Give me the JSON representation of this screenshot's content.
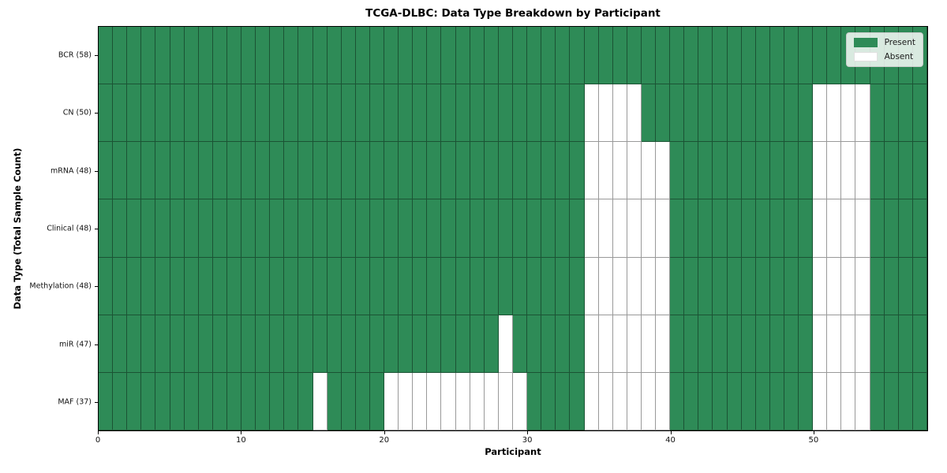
{
  "chart_data": {
    "type": "heatmap",
    "title": "TCGA-DLBC: Data Type Breakdown by Participant",
    "xlabel": "Participant",
    "ylabel": "Data Type (Total Sample Count)",
    "n_participants": 58,
    "x_range": [
      0,
      58
    ],
    "x_ticks": [
      0,
      10,
      20,
      30,
      40,
      50
    ],
    "grid": true,
    "legend_position": "upper right",
    "legend_labels": [
      "Present",
      "Absent"
    ],
    "colors": {
      "present": "#2e8b57",
      "absent": "#ffffff",
      "cell_border": "rgba(0,0,0,0.4)"
    },
    "rows": [
      {
        "label": "BCR (58)",
        "data_type": "BCR",
        "total_samples": 58,
        "absent_participants": []
      },
      {
        "label": "CN (50)",
        "data_type": "CN",
        "total_samples": 50,
        "absent_participants": [
          34,
          35,
          36,
          37,
          50,
          51,
          52,
          53
        ]
      },
      {
        "label": "mRNA (48)",
        "data_type": "mRNA",
        "total_samples": 48,
        "absent_participants": [
          34,
          35,
          36,
          37,
          38,
          39,
          50,
          51,
          52,
          53
        ]
      },
      {
        "label": "Clinical (48)",
        "data_type": "Clinical",
        "total_samples": 48,
        "absent_participants": [
          34,
          35,
          36,
          37,
          38,
          39,
          50,
          51,
          52,
          53
        ]
      },
      {
        "label": "Methylation (48)",
        "data_type": "Methylation",
        "total_samples": 48,
        "absent_participants": [
          34,
          35,
          36,
          37,
          38,
          39,
          50,
          51,
          52,
          53
        ]
      },
      {
        "label": "miR (47)",
        "data_type": "miR",
        "total_samples": 47,
        "absent_participants": [
          28,
          34,
          35,
          36,
          37,
          38,
          39,
          50,
          51,
          52,
          53
        ]
      },
      {
        "label": "MAF (37)",
        "data_type": "MAF",
        "total_samples": 37,
        "absent_participants": [
          15,
          20,
          21,
          22,
          23,
          24,
          25,
          26,
          27,
          28,
          29,
          34,
          35,
          36,
          37,
          38,
          39,
          50,
          51,
          52,
          53
        ]
      }
    ]
  }
}
